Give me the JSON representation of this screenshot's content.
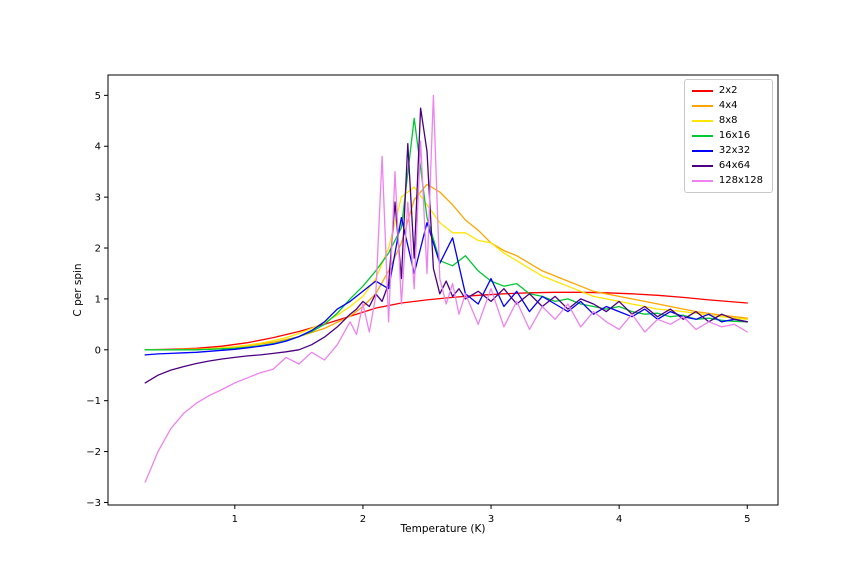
{
  "figure": {
    "background": "#ffffff"
  },
  "chart_data": {
    "type": "line",
    "title": "",
    "xlabel": "Temperature (K)",
    "ylabel": "C per spin",
    "xlim": [
      0.01,
      5.24
    ],
    "ylim": [
      -3.05,
      5.4
    ],
    "xticks": [
      1,
      2,
      3,
      4,
      5
    ],
    "yticks": [
      -3,
      -2,
      -1,
      0,
      1,
      2,
      3,
      4,
      5
    ],
    "grid": false,
    "legend_position": "upper right",
    "series": [
      {
        "name": "2x2",
        "color": "#ff0000",
        "x": [
          0.3,
          0.5,
          0.7,
          0.9,
          1.1,
          1.3,
          1.5,
          1.7,
          1.9,
          2.1,
          2.3,
          2.5,
          2.7,
          2.9,
          3.1,
          3.3,
          3.5,
          3.7,
          3.9,
          4.1,
          4.3,
          4.5,
          4.7,
          5.0
        ],
        "y": [
          0.0,
          0.01,
          0.03,
          0.07,
          0.14,
          0.24,
          0.36,
          0.5,
          0.66,
          0.82,
          0.92,
          0.98,
          1.03,
          1.07,
          1.1,
          1.12,
          1.13,
          1.13,
          1.12,
          1.1,
          1.07,
          1.03,
          0.98,
          0.92
        ]
      },
      {
        "name": "4x4",
        "color": "#ffa500",
        "x": [
          0.3,
          0.5,
          0.7,
          0.9,
          1.1,
          1.3,
          1.5,
          1.7,
          1.9,
          2.0,
          2.1,
          2.2,
          2.3,
          2.4,
          2.5,
          2.6,
          2.7,
          2.8,
          2.9,
          3.0,
          3.1,
          3.2,
          3.3,
          3.4,
          3.5,
          3.6,
          3.7,
          3.8,
          3.9,
          4.0,
          4.2,
          4.4,
          4.6,
          4.8,
          5.0
        ],
        "y": [
          0.0,
          0.0,
          0.01,
          0.03,
          0.08,
          0.15,
          0.26,
          0.42,
          0.66,
          0.85,
          1.1,
          1.55,
          2.1,
          2.95,
          3.25,
          3.1,
          2.85,
          2.55,
          2.35,
          2.1,
          1.95,
          1.85,
          1.7,
          1.55,
          1.45,
          1.35,
          1.25,
          1.15,
          1.1,
          1.05,
          0.95,
          0.85,
          0.75,
          0.68,
          0.62
        ]
      },
      {
        "name": "8x8",
        "color": "#ffe600",
        "x": [
          0.3,
          0.4,
          0.5,
          0.6,
          0.7,
          0.8,
          0.9,
          1.0,
          1.1,
          1.2,
          1.3,
          1.4,
          1.5,
          1.6,
          1.7,
          1.8,
          1.9,
          2.0,
          2.1,
          2.2,
          2.3,
          2.4,
          2.5,
          2.6,
          2.7,
          2.8,
          2.9,
          3.0,
          3.1,
          3.2,
          3.3,
          3.4,
          3.5,
          3.6,
          3.7,
          3.8,
          3.9,
          4.0,
          4.1,
          4.2,
          4.3,
          4.4,
          4.5,
          4.6,
          4.7,
          4.8,
          4.9,
          5.0
        ],
        "y": [
          0.0,
          0.0,
          0.0,
          0.01,
          0.01,
          0.02,
          0.04,
          0.06,
          0.09,
          0.13,
          0.18,
          0.24,
          0.32,
          0.42,
          0.54,
          0.68,
          0.85,
          1.05,
          1.4,
          2.0,
          3.0,
          3.2,
          2.85,
          2.5,
          2.3,
          2.3,
          2.15,
          2.1,
          1.9,
          1.75,
          1.6,
          1.45,
          1.35,
          1.25,
          1.15,
          1.05,
          1.0,
          0.95,
          0.9,
          0.85,
          0.8,
          0.78,
          0.75,
          0.72,
          0.68,
          0.65,
          0.62,
          0.6
        ]
      },
      {
        "name": "16x16",
        "color": "#00c832",
        "x": [
          0.3,
          0.4,
          0.5,
          0.6,
          0.7,
          0.8,
          0.9,
          1.0,
          1.1,
          1.2,
          1.3,
          1.4,
          1.5,
          1.6,
          1.7,
          1.8,
          1.9,
          2.0,
          2.1,
          2.2,
          2.3,
          2.4,
          2.5,
          2.6,
          2.7,
          2.8,
          2.9,
          3.0,
          3.1,
          3.2,
          3.3,
          3.4,
          3.5,
          3.6,
          3.7,
          3.8,
          3.9,
          4.0,
          4.1,
          4.2,
          4.3,
          4.4,
          4.5,
          4.6,
          4.7,
          4.8,
          4.9,
          5.0
        ],
        "y": [
          0.0,
          0.0,
          0.0,
          0.0,
          0.0,
          0.01,
          0.02,
          0.03,
          0.05,
          0.08,
          0.12,
          0.18,
          0.26,
          0.36,
          0.5,
          0.72,
          1.0,
          1.25,
          1.55,
          1.9,
          2.4,
          4.55,
          2.6,
          1.75,
          1.65,
          1.85,
          1.55,
          1.35,
          1.25,
          1.3,
          1.1,
          1.05,
          0.95,
          1.0,
          0.9,
          0.85,
          0.8,
          0.85,
          0.75,
          0.7,
          0.72,
          0.65,
          0.68,
          0.6,
          0.62,
          0.58,
          0.56,
          0.55
        ]
      },
      {
        "name": "32x32",
        "color": "#0000ff",
        "x": [
          0.3,
          0.4,
          0.5,
          0.6,
          0.7,
          0.8,
          0.9,
          1.0,
          1.1,
          1.2,
          1.3,
          1.4,
          1.5,
          1.6,
          1.7,
          1.8,
          1.9,
          2.0,
          2.1,
          2.2,
          2.3,
          2.4,
          2.5,
          2.6,
          2.7,
          2.8,
          2.9,
          3.0,
          3.1,
          3.2,
          3.3,
          3.4,
          3.5,
          3.6,
          3.7,
          3.8,
          3.9,
          4.0,
          4.1,
          4.2,
          4.3,
          4.4,
          4.5,
          4.6,
          4.7,
          4.8,
          4.9,
          5.0
        ],
        "y": [
          -0.1,
          -0.08,
          -0.07,
          -0.06,
          -0.05,
          -0.03,
          -0.01,
          0.01,
          0.04,
          0.07,
          0.11,
          0.17,
          0.26,
          0.38,
          0.55,
          0.8,
          0.95,
          1.15,
          1.35,
          1.2,
          2.6,
          1.5,
          2.5,
          1.7,
          2.2,
          1.1,
          0.9,
          1.4,
          0.85,
          1.15,
          0.75,
          1.05,
          0.9,
          0.75,
          0.95,
          0.7,
          0.85,
          0.75,
          0.65,
          0.8,
          0.6,
          0.75,
          0.65,
          0.6,
          0.7,
          0.55,
          0.6,
          0.55
        ]
      },
      {
        "name": "64x64",
        "color": "#4b0082",
        "x": [
          0.3,
          0.4,
          0.5,
          0.6,
          0.7,
          0.8,
          0.9,
          1.0,
          1.1,
          1.2,
          1.3,
          1.4,
          1.5,
          1.6,
          1.7,
          1.8,
          1.9,
          1.95,
          2.0,
          2.05,
          2.1,
          2.15,
          2.2,
          2.25,
          2.3,
          2.35,
          2.4,
          2.45,
          2.5,
          2.55,
          2.6,
          2.65,
          2.7,
          2.75,
          2.8,
          2.9,
          3.0,
          3.1,
          3.2,
          3.3,
          3.4,
          3.5,
          3.6,
          3.7,
          3.8,
          3.9,
          4.0,
          4.1,
          4.2,
          4.3,
          4.4,
          4.5,
          4.6,
          4.7,
          4.8,
          4.9,
          5.0
        ],
        "y": [
          -0.65,
          -0.5,
          -0.4,
          -0.33,
          -0.27,
          -0.22,
          -0.18,
          -0.15,
          -0.12,
          -0.1,
          -0.07,
          -0.04,
          0.0,
          0.1,
          0.25,
          0.45,
          0.7,
          0.8,
          0.95,
          0.85,
          1.1,
          0.95,
          1.3,
          2.9,
          1.4,
          4.05,
          1.8,
          4.75,
          3.9,
          1.6,
          1.1,
          1.35,
          1.05,
          1.2,
          1.0,
          1.15,
          0.95,
          1.2,
          0.9,
          1.1,
          0.85,
          1.05,
          0.8,
          1.0,
          0.9,
          0.75,
          0.95,
          0.7,
          0.85,
          0.65,
          0.8,
          0.6,
          0.75,
          0.55,
          0.7,
          0.6,
          0.55
        ]
      },
      {
        "name": "128x128",
        "color": "#ee82ee",
        "x": [
          0.3,
          0.4,
          0.5,
          0.6,
          0.7,
          0.8,
          0.9,
          1.0,
          1.1,
          1.2,
          1.3,
          1.4,
          1.5,
          1.6,
          1.7,
          1.8,
          1.9,
          1.95,
          2.0,
          2.05,
          2.1,
          2.15,
          2.2,
          2.25,
          2.3,
          2.35,
          2.4,
          2.45,
          2.5,
          2.55,
          2.6,
          2.65,
          2.7,
          2.75,
          2.8,
          2.9,
          3.0,
          3.1,
          3.2,
          3.3,
          3.4,
          3.5,
          3.6,
          3.7,
          3.8,
          3.9,
          4.0,
          4.1,
          4.2,
          4.3,
          4.4,
          4.5,
          4.6,
          4.7,
          4.8,
          4.9,
          5.0
        ],
        "y": [
          -2.6,
          -2.0,
          -1.55,
          -1.25,
          -1.05,
          -0.9,
          -0.78,
          -0.65,
          -0.55,
          -0.45,
          -0.38,
          -0.15,
          -0.28,
          -0.05,
          -0.2,
          0.1,
          0.55,
          0.3,
          0.9,
          0.35,
          1.05,
          3.8,
          0.55,
          3.5,
          0.9,
          2.9,
          1.2,
          4.1,
          1.5,
          5.0,
          1.4,
          0.9,
          1.3,
          0.7,
          1.1,
          0.5,
          1.2,
          0.45,
          0.95,
          0.4,
          0.85,
          0.6,
          0.9,
          0.45,
          0.75,
          0.55,
          0.4,
          0.7,
          0.35,
          0.6,
          0.5,
          0.65,
          0.4,
          0.55,
          0.45,
          0.5,
          0.35
        ]
      }
    ]
  }
}
